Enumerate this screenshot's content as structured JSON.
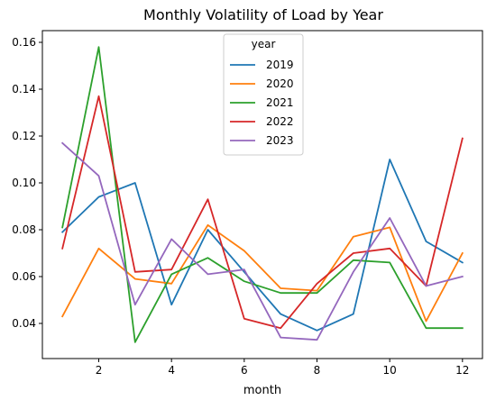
{
  "chart_data": {
    "type": "line",
    "title": "Monthly Volatility of Load by Year",
    "xlabel": "month",
    "ylabel": "",
    "x": [
      1,
      2,
      3,
      4,
      5,
      6,
      7,
      8,
      9,
      10,
      11,
      12
    ],
    "xlim": [
      0.45,
      12.55
    ],
    "ylim": [
      0.025,
      0.165
    ],
    "xticks": [
      2,
      4,
      6,
      8,
      10,
      12
    ],
    "yticks": [
      0.04,
      0.06,
      0.08,
      0.1,
      0.12,
      0.14,
      0.16
    ],
    "ytick_labels": [
      "0.04",
      "0.06",
      "0.08",
      "0.10",
      "0.12",
      "0.14",
      "0.16"
    ],
    "grid": false,
    "legend": {
      "title": "year",
      "placement": "top-center"
    },
    "series": [
      {
        "name": "2019",
        "color": "#1f77b4",
        "values": [
          0.079,
          0.094,
          0.1,
          0.048,
          0.08,
          0.062,
          0.044,
          0.037,
          0.044,
          0.11,
          0.075,
          0.066
        ]
      },
      {
        "name": "2020",
        "color": "#ff7f0e",
        "values": [
          0.043,
          0.072,
          0.059,
          0.057,
          0.082,
          0.071,
          0.055,
          0.054,
          0.077,
          0.081,
          0.041,
          0.07
        ]
      },
      {
        "name": "2021",
        "color": "#2ca02c",
        "values": [
          0.081,
          0.158,
          0.032,
          0.061,
          0.068,
          0.058,
          0.053,
          0.053,
          0.067,
          0.066,
          0.038,
          0.038
        ]
      },
      {
        "name": "2022",
        "color": "#d62728",
        "values": [
          0.072,
          0.137,
          0.062,
          0.063,
          0.093,
          0.042,
          0.038,
          0.057,
          0.07,
          0.072,
          0.056,
          0.119
        ]
      },
      {
        "name": "2023",
        "color": "#9467bd",
        "values": [
          0.117,
          0.103,
          0.048,
          0.076,
          0.061,
          0.063,
          0.034,
          0.033,
          0.062,
          0.085,
          0.056,
          0.06
        ]
      }
    ]
  }
}
